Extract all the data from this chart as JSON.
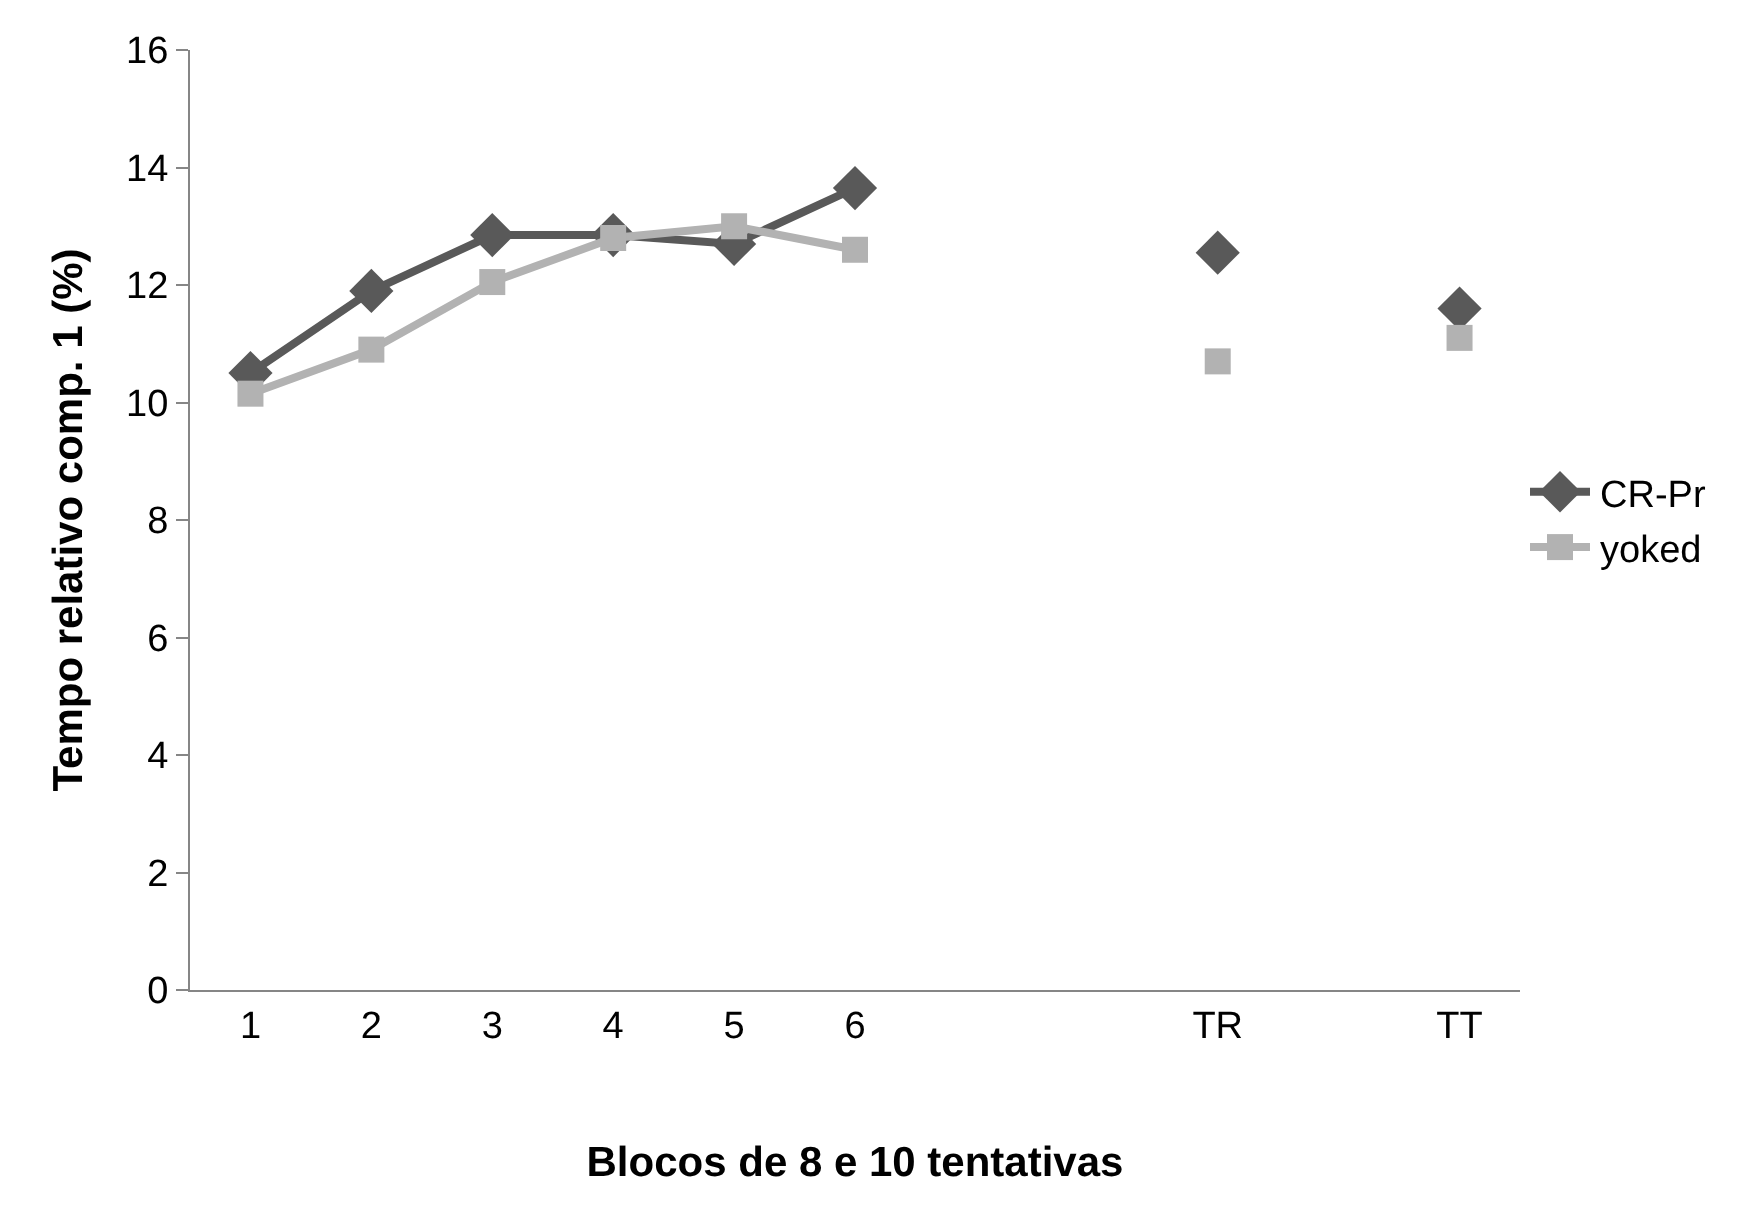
{
  "chart_data": {
    "type": "line",
    "xlabel": "Blocos de 8 e 10 tentativas",
    "ylabel": "Tempo relativo comp. 1 (%)",
    "categories": [
      "1",
      "2",
      "3",
      "4",
      "5",
      "6",
      null,
      null,
      "TR",
      null,
      "TT"
    ],
    "series": [
      {
        "name": "CR-Pr",
        "color": "#595959",
        "marker": "diamond",
        "values": [
          10.5,
          11.9,
          12.85,
          12.85,
          12.7,
          13.65,
          null,
          null,
          12.55,
          null,
          11.6
        ]
      },
      {
        "name": "yoked",
        "color": "#b2b2b2",
        "marker": "square",
        "values": [
          10.15,
          10.9,
          12.05,
          12.8,
          13.0,
          12.6,
          null,
          null,
          10.7,
          null,
          11.1
        ]
      }
    ],
    "ylim": [
      0,
      16
    ],
    "yticks": [
      0,
      2,
      4,
      6,
      8,
      10,
      12,
      14,
      16
    ],
    "legend": "right",
    "line_style": "solid"
  }
}
